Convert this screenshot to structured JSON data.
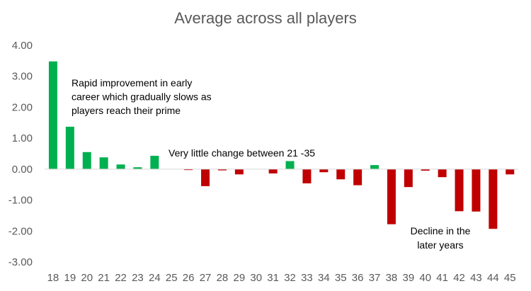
{
  "chart_data": {
    "type": "bar",
    "title": "Average across all players",
    "xlabel": "",
    "ylabel": "",
    "ylim": [
      -3,
      4
    ],
    "y_ticks": [
      "4.00",
      "3.00",
      "2.00",
      "1.00",
      "0.00",
      "-1.00",
      "-2.00",
      "-3.00"
    ],
    "grid": false,
    "legend": "none",
    "colors": {
      "positive": "#00b050",
      "negative": "#c00000",
      "axis": "#d9d9d9",
      "text": "#595959"
    },
    "categories": [
      "18",
      "19",
      "20",
      "21",
      "22",
      "23",
      "24",
      "25",
      "26",
      "27",
      "28",
      "29",
      "30",
      "31",
      "32",
      "33",
      "34",
      "35",
      "36",
      "37",
      "38",
      "39",
      "40",
      "41",
      "42",
      "43",
      "44",
      "45"
    ],
    "values": [
      3.48,
      1.37,
      0.55,
      0.38,
      0.15,
      0.06,
      0.43,
      0.0,
      -0.03,
      -0.55,
      -0.04,
      -0.17,
      0.0,
      -0.14,
      0.26,
      -0.46,
      -0.1,
      -0.33,
      -0.52,
      0.13,
      -1.78,
      -0.58,
      -0.05,
      -0.26,
      -1.36,
      -1.37,
      -1.93,
      -0.17
    ],
    "annotations": [
      {
        "lines": [
          "Rapid improvement in early",
          "career which gradually slows as",
          "players reach their prime"
        ]
      },
      {
        "lines": [
          "Very little change between 21 -35"
        ]
      },
      {
        "lines": [
          "Decline in the",
          "later years"
        ]
      }
    ]
  }
}
